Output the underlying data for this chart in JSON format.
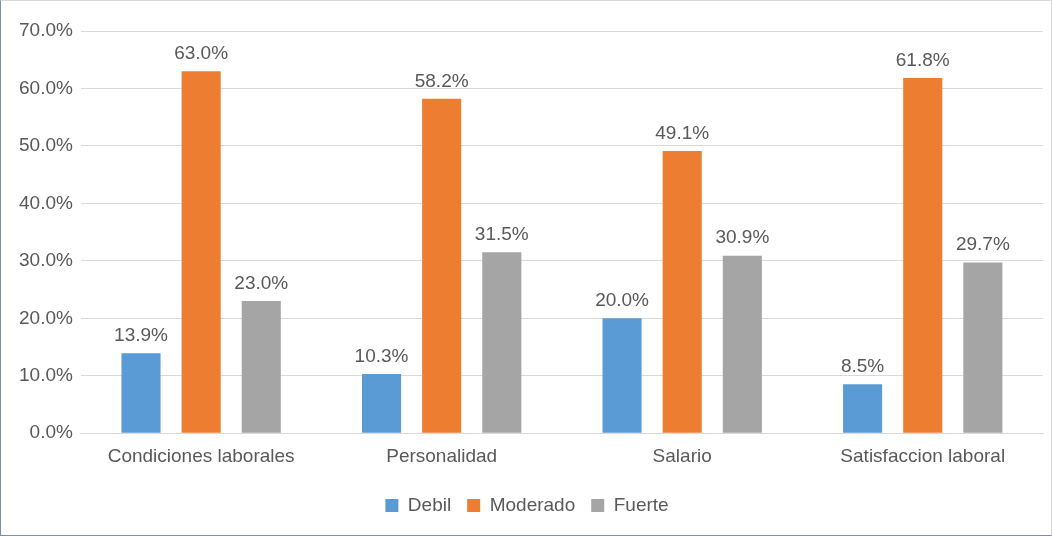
{
  "chart_data": {
    "type": "bar",
    "categories": [
      "Condiciones laborales",
      "Personalidad",
      "Salario",
      "Satisfaccion laboral"
    ],
    "series": [
      {
        "name": "Debil",
        "color": "#5b9bd5",
        "values": [
          13.9,
          10.3,
          20.0,
          8.5
        ],
        "value_labels": [
          "13.9%",
          "10.3%",
          "20.0%",
          "8.5%"
        ]
      },
      {
        "name": "Moderado",
        "color": "#ed7d31",
        "values": [
          63.0,
          58.2,
          49.1,
          61.8
        ],
        "value_labels": [
          "63.0%",
          "58.2%",
          "49.1%",
          "61.8%"
        ]
      },
      {
        "name": "Fuerte",
        "color": "#a5a5a5",
        "values": [
          23.0,
          31.5,
          30.9,
          29.7
        ],
        "value_labels": [
          "23.0%",
          "31.5%",
          "30.9%",
          "29.7%"
        ]
      }
    ],
    "ylim": [
      0,
      70
    ],
    "yticks": [
      {
        "value": 0,
        "label": "0.0%"
      },
      {
        "value": 10,
        "label": "10.0%"
      },
      {
        "value": 20,
        "label": "20.0%"
      },
      {
        "value": 30,
        "label": "30.0%"
      },
      {
        "value": 40,
        "label": "40.0%"
      },
      {
        "value": 50,
        "label": "50.0%"
      },
      {
        "value": 60,
        "label": "60.0%"
      },
      {
        "value": 70,
        "label": "70.0%"
      }
    ],
    "grid": "y",
    "legend": "bottom"
  }
}
